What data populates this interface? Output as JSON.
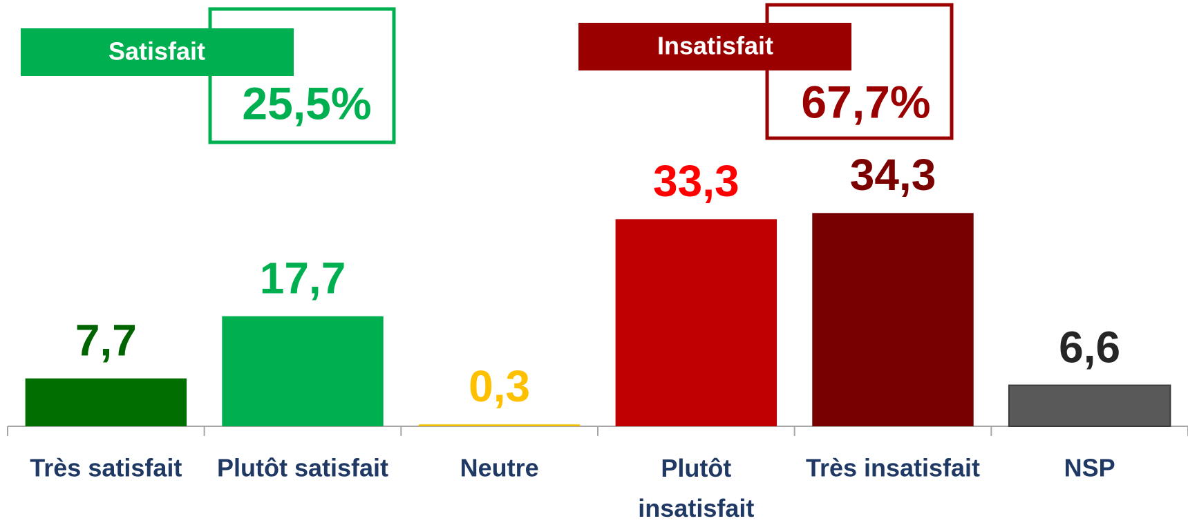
{
  "chart_data": {
    "type": "bar",
    "categories": [
      "Très satisfait",
      "Plutôt satisfait",
      "Neutre",
      "Plutôt insatisfait",
      "Très insatisfait",
      "NSP"
    ],
    "values": [
      7.7,
      17.7,
      0.3,
      33.3,
      34.3,
      6.6
    ],
    "value_labels": [
      "7,7",
      "17,7",
      "0,3",
      "33,3",
      "34,3",
      "6,6"
    ],
    "colors": [
      "#006e00",
      "#00b050",
      "#f0c000",
      "#c00000",
      "#780000",
      "#595959"
    ],
    "label_colors": [
      "#006400",
      "#00b050",
      "#ffc000",
      "#ff0000",
      "#7b0000",
      "#262626"
    ],
    "ylim": [
      0,
      40
    ],
    "annotations": [
      {
        "label": "Satisfait",
        "value_text": "25,5%",
        "color": "#00b050"
      },
      {
        "label": "Insatisfait",
        "value_text": "67,7%",
        "color": "#9b0000"
      }
    ]
  }
}
